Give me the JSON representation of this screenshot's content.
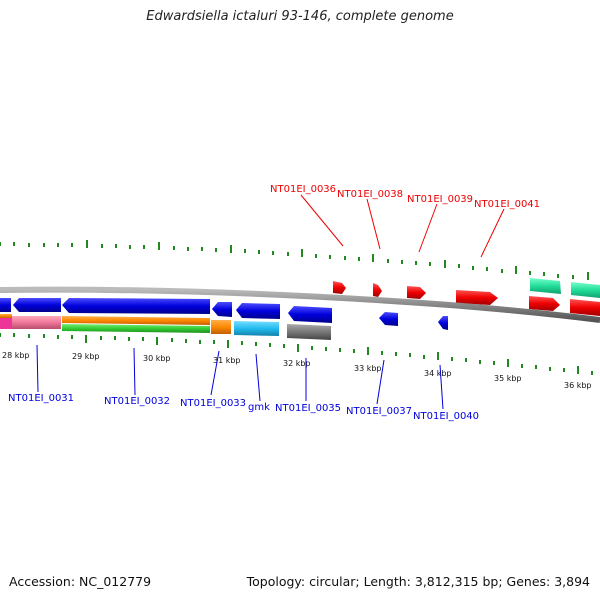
{
  "title": "Edwardsiella ictaluri 93-146, complete genome",
  "footer": {
    "accession": "Accession: NC_012779",
    "summary": "Topology: circular; Length: 3,812,315 bp; Genes: 3,894"
  },
  "scale_labels": [
    "28 kbp",
    "29 kbp",
    "30 kbp",
    "31 kbp",
    "32 kbp",
    "33 kbp",
    "34 kbp",
    "35 kbp",
    "36 kbp"
  ],
  "forward_gene_labels": [
    "NT01EI_0036",
    "NT01EI_0038",
    "NT01EI_0039",
    "NT01EI_0041"
  ],
  "reverse_gene_labels": [
    "NT01EI_0031",
    "NT01EI_0032",
    "NT01EI_0033",
    "gmk",
    "NT01EI_0035",
    "NT01EI_0037",
    "NT01EI_0040"
  ],
  "colors": {
    "forward_gene": "#ee0000",
    "reverse_gene": "#0000dd",
    "backbone": "#888888",
    "tick": "#228822",
    "pink": "#ee7799",
    "orange": "#ff8800",
    "green": "#33cc33",
    "cyan": "#22bbee",
    "teal": "#22dd99",
    "gray": "#777777",
    "magenta": "#ee3399"
  }
}
